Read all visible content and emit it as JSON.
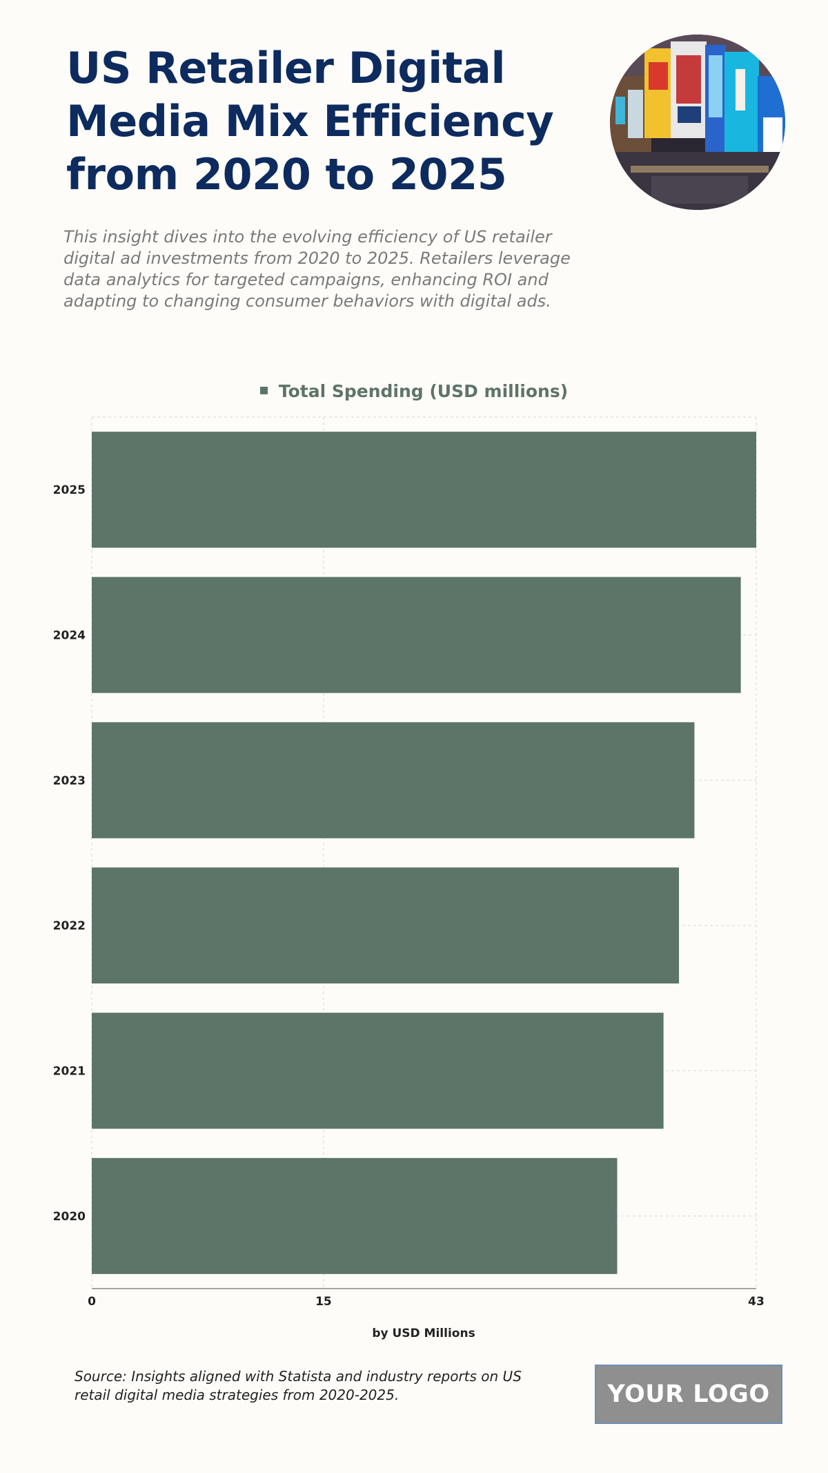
{
  "header": {
    "title": "US Retailer Digital Media Mix Efficiency from 2020 to 2025",
    "subtitle": "This insight dives into the evolving efficiency of US retailer digital ad investments from 2020 to 2025. Retailers leverage data analytics for targeted campaigns, enhancing ROI and adapting to changing consumer behaviors with digital ads."
  },
  "legend": {
    "label": "Total Spending (USD millions)"
  },
  "chart_data": {
    "type": "bar",
    "orientation": "horizontal",
    "categories": [
      "2025",
      "2024",
      "2023",
      "2022",
      "2021",
      "2020"
    ],
    "series": [
      {
        "name": "Total Spending (USD millions)",
        "values": [
          43,
          42,
          39,
          38,
          37,
          34
        ]
      }
    ],
    "xlabel": "by USD Millions",
    "xlim": [
      0,
      43
    ],
    "xticks": [
      0,
      15,
      43
    ],
    "grid": true,
    "legend_position": "top-center",
    "bar_color": "#5c7568"
  },
  "footer": {
    "source": "Source: Insights aligned with Statista and industry reports on US retail digital media strategies from 2020-2025.",
    "logo_text": "YOUR LOGO"
  },
  "colors": {
    "title": "#0d2b5e",
    "bar": "#5c7568",
    "background": "#fdfcf8"
  }
}
